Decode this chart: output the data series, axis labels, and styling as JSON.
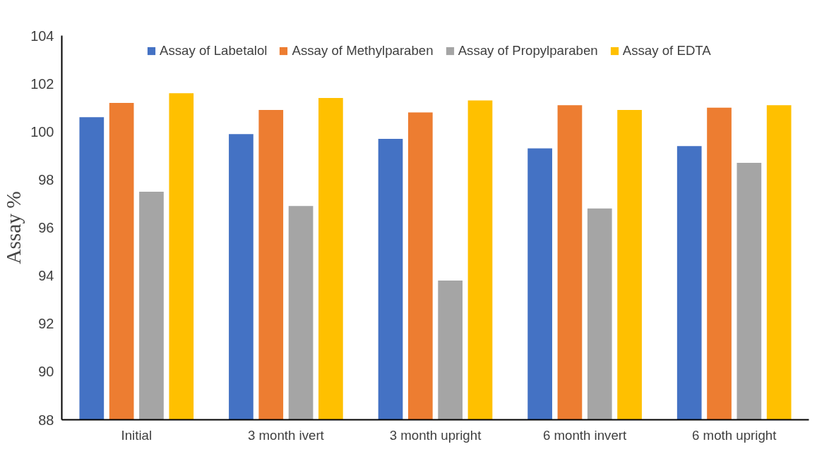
{
  "chart_data": {
    "type": "bar",
    "ylabel": "Assay %",
    "categories": [
      "Initial",
      "3 month ivert",
      "3 month upright",
      "6 month invert",
      "6 moth upright"
    ],
    "series": [
      {
        "name": "Assay of Labetalol",
        "color": "#4472c4",
        "values": [
          100.6,
          99.9,
          99.7,
          99.3,
          99.4
        ]
      },
      {
        "name": "Assay of Methylparaben",
        "color": "#ed7d31",
        "values": [
          101.2,
          100.9,
          100.8,
          101.1,
          101.0
        ]
      },
      {
        "name": "Assay of Propylparaben",
        "color": "#a5a5a5",
        "values": [
          97.5,
          96.9,
          93.8,
          96.8,
          98.7
        ]
      },
      {
        "name": "Assay of EDTA",
        "color": "#ffc000",
        "values": [
          101.6,
          101.4,
          101.3,
          100.9,
          101.1
        ]
      }
    ],
    "ylim": [
      88,
      104
    ],
    "yticks": [
      88,
      90,
      92,
      94,
      96,
      98,
      100,
      102,
      104
    ],
    "grid": false,
    "legend": "top"
  }
}
